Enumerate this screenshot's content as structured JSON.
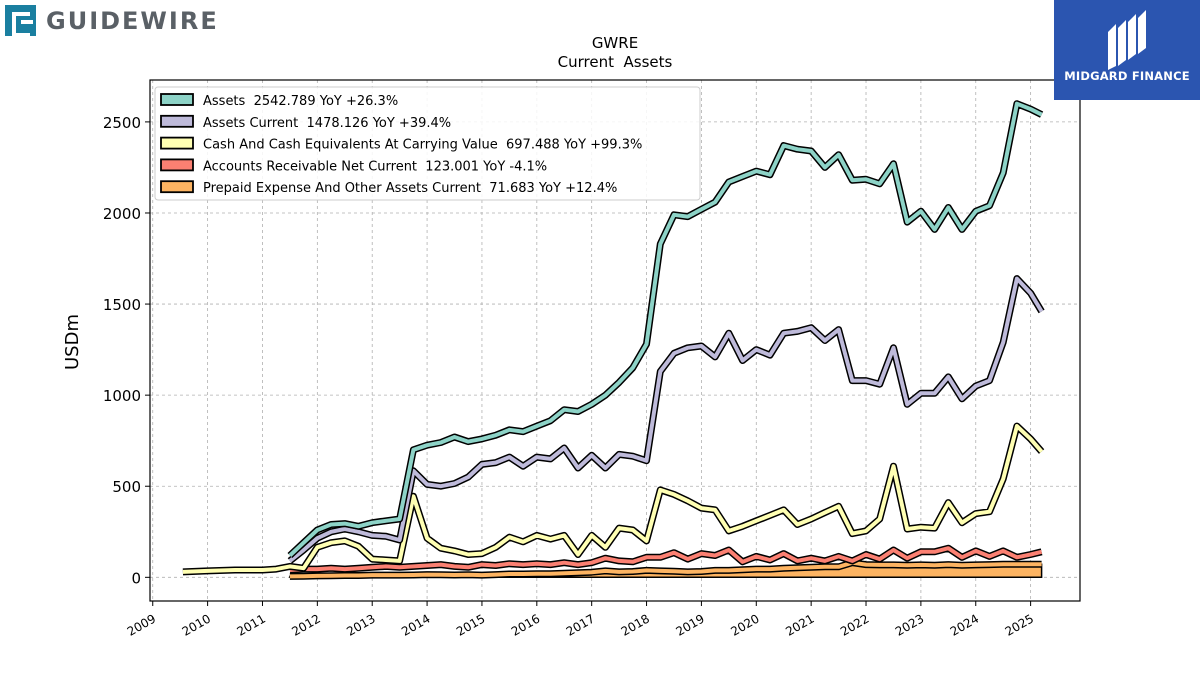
{
  "brand_left": {
    "name": "GUIDEWIRE",
    "icon": "guidewire-logo-icon"
  },
  "brand_right": {
    "name": "MIDGARD FINANCE",
    "icon": "midgard-logo-icon",
    "color": "#2b55b0"
  },
  "chart_data": {
    "type": "line",
    "title": "GWRE",
    "subtitle": "Current  Assets",
    "ylabel": "USDm",
    "xlabel": "",
    "xlim": [
      2008.95,
      2025.9
    ],
    "ylim": [
      -130,
      2730
    ],
    "yticks": [
      0,
      500,
      1000,
      1500,
      2000,
      2500
    ],
    "xticks": [
      "2009",
      "2010",
      "2011",
      "2012",
      "2013",
      "2014",
      "2015",
      "2016",
      "2017",
      "2018",
      "2019",
      "2020",
      "2021",
      "2022",
      "2023",
      "2024",
      "2025"
    ],
    "grid": true,
    "legend_position": "top-left",
    "series": [
      {
        "name": "Assets",
        "legend": "Assets  2542.789 YoY +26.3%",
        "color": "#8dd3c7",
        "points": [
          [
            2011.5,
            120
          ],
          [
            2011.75,
            190
          ],
          [
            2012.0,
            260
          ],
          [
            2012.25,
            290
          ],
          [
            2012.5,
            295
          ],
          [
            2012.75,
            280
          ],
          [
            2013.0,
            300
          ],
          [
            2013.25,
            310
          ],
          [
            2013.5,
            320
          ],
          [
            2013.75,
            700
          ],
          [
            2014.0,
            725
          ],
          [
            2014.25,
            740
          ],
          [
            2014.5,
            770
          ],
          [
            2014.75,
            745
          ],
          [
            2015.0,
            760
          ],
          [
            2015.25,
            780
          ],
          [
            2015.5,
            810
          ],
          [
            2015.75,
            800
          ],
          [
            2016.0,
            830
          ],
          [
            2016.25,
            860
          ],
          [
            2016.5,
            920
          ],
          [
            2016.75,
            910
          ],
          [
            2017.0,
            950
          ],
          [
            2017.25,
            1000
          ],
          [
            2017.5,
            1070
          ],
          [
            2017.75,
            1150
          ],
          [
            2018.0,
            1280
          ],
          [
            2018.25,
            1830
          ],
          [
            2018.5,
            1990
          ],
          [
            2018.75,
            1980
          ],
          [
            2019.0,
            2020
          ],
          [
            2019.25,
            2060
          ],
          [
            2019.5,
            2170
          ],
          [
            2019.75,
            2200
          ],
          [
            2020.0,
            2230
          ],
          [
            2020.25,
            2210
          ],
          [
            2020.5,
            2370
          ],
          [
            2020.75,
            2350
          ],
          [
            2021.0,
            2340
          ],
          [
            2021.25,
            2250
          ],
          [
            2021.5,
            2320
          ],
          [
            2021.75,
            2180
          ],
          [
            2022.0,
            2185
          ],
          [
            2022.25,
            2160
          ],
          [
            2022.5,
            2270
          ],
          [
            2022.75,
            1950
          ],
          [
            2023.0,
            2010
          ],
          [
            2023.25,
            1910
          ],
          [
            2023.5,
            2030
          ],
          [
            2023.75,
            1910
          ],
          [
            2024.0,
            2010
          ],
          [
            2024.25,
            2040
          ],
          [
            2024.5,
            2220
          ],
          [
            2024.75,
            2600
          ],
          [
            2025.0,
            2570
          ],
          [
            2025.2,
            2540
          ]
        ]
      },
      {
        "name": "Assets Current",
        "legend": "Assets Current  1478.126 YoY +39.4%",
        "color": "#bebada",
        "points": [
          [
            2011.5,
            90
          ],
          [
            2011.75,
            150
          ],
          [
            2012.0,
            215
          ],
          [
            2012.25,
            250
          ],
          [
            2012.5,
            265
          ],
          [
            2012.75,
            250
          ],
          [
            2013.0,
            230
          ],
          [
            2013.25,
            225
          ],
          [
            2013.5,
            205
          ],
          [
            2013.75,
            585
          ],
          [
            2014.0,
            510
          ],
          [
            2014.25,
            500
          ],
          [
            2014.5,
            515
          ],
          [
            2014.75,
            550
          ],
          [
            2015.0,
            620
          ],
          [
            2015.25,
            630
          ],
          [
            2015.5,
            660
          ],
          [
            2015.75,
            610
          ],
          [
            2016.0,
            660
          ],
          [
            2016.25,
            650
          ],
          [
            2016.5,
            710
          ],
          [
            2016.75,
            600
          ],
          [
            2017.0,
            670
          ],
          [
            2017.25,
            600
          ],
          [
            2017.5,
            675
          ],
          [
            2017.75,
            665
          ],
          [
            2018.0,
            640
          ],
          [
            2018.25,
            1130
          ],
          [
            2018.5,
            1230
          ],
          [
            2018.75,
            1260
          ],
          [
            2019.0,
            1270
          ],
          [
            2019.25,
            1210
          ],
          [
            2019.5,
            1340
          ],
          [
            2019.75,
            1190
          ],
          [
            2020.0,
            1250
          ],
          [
            2020.25,
            1220
          ],
          [
            2020.5,
            1340
          ],
          [
            2020.75,
            1350
          ],
          [
            2021.0,
            1370
          ],
          [
            2021.25,
            1300
          ],
          [
            2021.5,
            1360
          ],
          [
            2021.75,
            1080
          ],
          [
            2022.0,
            1080
          ],
          [
            2022.25,
            1060
          ],
          [
            2022.5,
            1260
          ],
          [
            2022.75,
            950
          ],
          [
            2023.0,
            1010
          ],
          [
            2023.25,
            1010
          ],
          [
            2023.5,
            1100
          ],
          [
            2023.75,
            980
          ],
          [
            2024.0,
            1050
          ],
          [
            2024.25,
            1080
          ],
          [
            2024.5,
            1290
          ],
          [
            2024.75,
            1640
          ],
          [
            2025.0,
            1560
          ],
          [
            2025.2,
            1460
          ]
        ]
      },
      {
        "name": "Cash And Cash Equivalents At Carrying Value",
        "legend": "Cash And Cash Equivalents At Carrying Value  697.488 YoY +99.3%",
        "color": "#ffffb3",
        "points": [
          [
            2009.55,
            30
          ],
          [
            2010.0,
            35
          ],
          [
            2010.5,
            40
          ],
          [
            2011.0,
            40
          ],
          [
            2011.25,
            45
          ],
          [
            2011.5,
            60
          ],
          [
            2011.75,
            50
          ],
          [
            2012.0,
            165
          ],
          [
            2012.25,
            190
          ],
          [
            2012.5,
            200
          ],
          [
            2012.75,
            170
          ],
          [
            2013.0,
            100
          ],
          [
            2013.25,
            95
          ],
          [
            2013.5,
            90
          ],
          [
            2013.75,
            445
          ],
          [
            2014.0,
            215
          ],
          [
            2014.25,
            160
          ],
          [
            2014.5,
            145
          ],
          [
            2014.75,
            125
          ],
          [
            2015.0,
            130
          ],
          [
            2015.25,
            165
          ],
          [
            2015.5,
            220
          ],
          [
            2015.75,
            195
          ],
          [
            2016.0,
            230
          ],
          [
            2016.25,
            210
          ],
          [
            2016.5,
            230
          ],
          [
            2016.75,
            125
          ],
          [
            2017.0,
            230
          ],
          [
            2017.25,
            165
          ],
          [
            2017.5,
            270
          ],
          [
            2017.75,
            260
          ],
          [
            2018.0,
            200
          ],
          [
            2018.25,
            480
          ],
          [
            2018.5,
            455
          ],
          [
            2018.75,
            420
          ],
          [
            2019.0,
            380
          ],
          [
            2019.25,
            370
          ],
          [
            2019.5,
            255
          ],
          [
            2019.75,
            280
          ],
          [
            2020.0,
            310
          ],
          [
            2020.25,
            340
          ],
          [
            2020.5,
            370
          ],
          [
            2020.75,
            290
          ],
          [
            2021.0,
            320
          ],
          [
            2021.25,
            355
          ],
          [
            2021.5,
            390
          ],
          [
            2021.75,
            240
          ],
          [
            2022.0,
            255
          ],
          [
            2022.25,
            320
          ],
          [
            2022.5,
            610
          ],
          [
            2022.75,
            265
          ],
          [
            2023.0,
            275
          ],
          [
            2023.25,
            270
          ],
          [
            2023.5,
            410
          ],
          [
            2023.75,
            300
          ],
          [
            2024.0,
            350
          ],
          [
            2024.25,
            360
          ],
          [
            2024.5,
            540
          ],
          [
            2024.75,
            830
          ],
          [
            2025.0,
            760
          ],
          [
            2025.2,
            690
          ]
        ]
      },
      {
        "name": "Accounts Receivable Net Current",
        "legend": "Accounts Receivable Net Current  123.001 YoY -4.1%",
        "color": "#fb8072",
        "points": [
          [
            2011.5,
            40
          ],
          [
            2011.75,
            45
          ],
          [
            2012.0,
            45
          ],
          [
            2012.25,
            50
          ],
          [
            2012.5,
            45
          ],
          [
            2012.75,
            50
          ],
          [
            2013.0,
            55
          ],
          [
            2013.25,
            60
          ],
          [
            2013.5,
            55
          ],
          [
            2013.75,
            60
          ],
          [
            2014.0,
            65
          ],
          [
            2014.25,
            70
          ],
          [
            2014.5,
            60
          ],
          [
            2014.75,
            55
          ],
          [
            2015.0,
            70
          ],
          [
            2015.25,
            65
          ],
          [
            2015.5,
            75
          ],
          [
            2015.75,
            70
          ],
          [
            2016.0,
            75
          ],
          [
            2016.25,
            70
          ],
          [
            2016.5,
            80
          ],
          [
            2016.75,
            70
          ],
          [
            2017.0,
            80
          ],
          [
            2017.25,
            105
          ],
          [
            2017.5,
            90
          ],
          [
            2017.75,
            85
          ],
          [
            2018.0,
            110
          ],
          [
            2018.25,
            110
          ],
          [
            2018.5,
            135
          ],
          [
            2018.75,
            100
          ],
          [
            2019.0,
            130
          ],
          [
            2019.25,
            120
          ],
          [
            2019.5,
            150
          ],
          [
            2019.75,
            85
          ],
          [
            2020.0,
            115
          ],
          [
            2020.25,
            95
          ],
          [
            2020.5,
            130
          ],
          [
            2020.75,
            90
          ],
          [
            2021.0,
            105
          ],
          [
            2021.25,
            90
          ],
          [
            2021.5,
            115
          ],
          [
            2021.75,
            90
          ],
          [
            2022.0,
            125
          ],
          [
            2022.25,
            100
          ],
          [
            2022.5,
            150
          ],
          [
            2022.75,
            105
          ],
          [
            2023.0,
            140
          ],
          [
            2023.25,
            140
          ],
          [
            2023.5,
            160
          ],
          [
            2023.75,
            110
          ],
          [
            2024.0,
            145
          ],
          [
            2024.25,
            115
          ],
          [
            2024.5,
            145
          ],
          [
            2024.75,
            110
          ],
          [
            2025.0,
            125
          ],
          [
            2025.2,
            140
          ]
        ]
      },
      {
        "name": "Prepaid Expense And Other Assets Current",
        "legend": "Prepaid Expense And Other Assets Current  71.683 YoY +12.4%",
        "color": "#fdb462",
        "points": [
          [
            2011.5,
            5
          ],
          [
            2011.75,
            6
          ],
          [
            2012.0,
            8
          ],
          [
            2012.25,
            9
          ],
          [
            2012.5,
            10
          ],
          [
            2012.75,
            10
          ],
          [
            2013.0,
            12
          ],
          [
            2013.25,
            12
          ],
          [
            2013.5,
            12
          ],
          [
            2013.75,
            13
          ],
          [
            2014.0,
            15
          ],
          [
            2014.25,
            14
          ],
          [
            2014.5,
            13
          ],
          [
            2014.75,
            14
          ],
          [
            2015.0,
            12
          ],
          [
            2015.25,
            15
          ],
          [
            2015.5,
            18
          ],
          [
            2015.75,
            18
          ],
          [
            2016.0,
            20
          ],
          [
            2016.25,
            20
          ],
          [
            2016.5,
            22
          ],
          [
            2016.75,
            25
          ],
          [
            2017.0,
            28
          ],
          [
            2017.25,
            35
          ],
          [
            2017.5,
            30
          ],
          [
            2017.75,
            32
          ],
          [
            2018.0,
            38
          ],
          [
            2018.25,
            35
          ],
          [
            2018.5,
            33
          ],
          [
            2018.75,
            30
          ],
          [
            2019.0,
            32
          ],
          [
            2019.25,
            38
          ],
          [
            2019.5,
            38
          ],
          [
            2019.75,
            42
          ],
          [
            2020.0,
            45
          ],
          [
            2020.25,
            45
          ],
          [
            2020.5,
            50
          ],
          [
            2020.75,
            52
          ],
          [
            2021.0,
            55
          ],
          [
            2021.25,
            58
          ],
          [
            2021.5,
            58
          ],
          [
            2021.75,
            80
          ],
          [
            2022.0,
            70
          ],
          [
            2022.25,
            68
          ],
          [
            2022.5,
            68
          ],
          [
            2022.75,
            66
          ],
          [
            2023.0,
            68
          ],
          [
            2023.25,
            66
          ],
          [
            2023.5,
            70
          ],
          [
            2023.75,
            66
          ],
          [
            2024.0,
            68
          ],
          [
            2024.25,
            70
          ],
          [
            2024.5,
            72
          ],
          [
            2024.75,
            72
          ],
          [
            2025.0,
            72
          ],
          [
            2025.2,
            72
          ]
        ]
      }
    ]
  }
}
